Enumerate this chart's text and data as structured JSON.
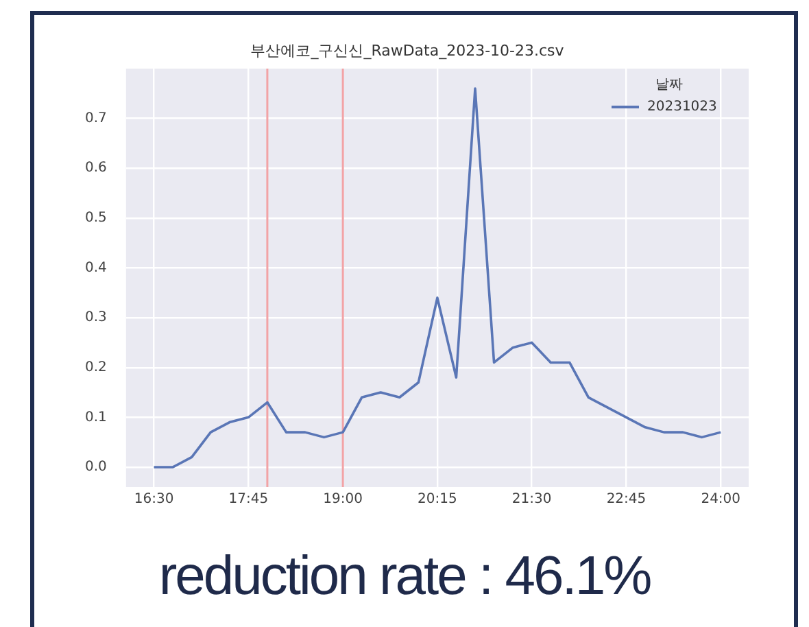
{
  "chart_data": {
    "type": "line",
    "title": "부산에코_구신신_RawData_2023-10-23.csv",
    "legend_title": "날짜",
    "x": [
      16.5,
      16.75,
      17,
      17.25,
      17.5,
      17.75,
      18,
      18.25,
      18.5,
      18.75,
      19,
      19.25,
      19.5,
      19.75,
      20,
      20.25,
      20.5,
      20.75,
      21,
      21.25,
      21.5,
      21.75,
      22,
      22.25,
      22.5,
      22.75,
      23,
      23.25,
      23.5,
      23.75,
      24
    ],
    "series": [
      {
        "name": "20231023",
        "color": "#5a76b6",
        "values": [
          0,
          0,
          0.02,
          0.07,
          0.09,
          0.1,
          0.13,
          0.07,
          0.07,
          0.06,
          0.07,
          0.14,
          0.15,
          0.14,
          0.17,
          0.34,
          0.18,
          0.76,
          0.21,
          0.24,
          0.25,
          0.21,
          0.21,
          0.14,
          0.12,
          0.1,
          0.08,
          0.07,
          0.07,
          0.06,
          0.07
        ]
      }
    ],
    "xlim": [
      16.13,
      24.37
    ],
    "xticks": [
      {
        "value": 16.5,
        "label": "16:30"
      },
      {
        "value": 17.75,
        "label": "17:45"
      },
      {
        "value": 19,
        "label": "19:00"
      },
      {
        "value": 20.25,
        "label": "20:15"
      },
      {
        "value": 21.5,
        "label": "21:30"
      },
      {
        "value": 22.75,
        "label": "22:45"
      },
      {
        "value": 24,
        "label": "24:00"
      }
    ],
    "ylim": [
      -0.04,
      0.8
    ],
    "yticks": [
      {
        "value": 0,
        "label": "0.0"
      },
      0.1,
      0.2,
      0.3,
      0.4,
      0.5,
      0.6,
      0.7
    ],
    "ref_lines": [
      {
        "axis": "x",
        "value": 18,
        "color": "#f2a3a6"
      },
      {
        "axis": "x",
        "value": 19,
        "color": "#f2a3a6"
      }
    ],
    "grid": true,
    "legend": "top right",
    "marker": "none",
    "line_style": "solid",
    "annotations": [
      "reduction rate : 46.1%"
    ]
  }
}
